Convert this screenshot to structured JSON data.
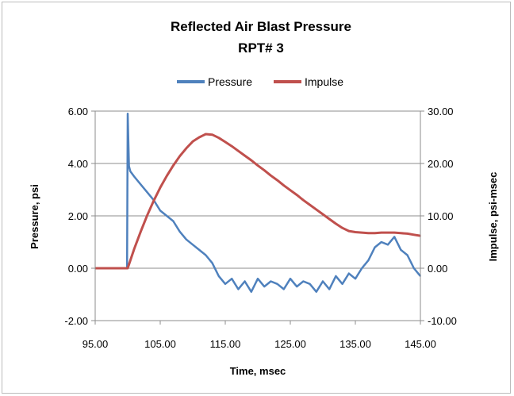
{
  "chart_data": {
    "type": "line",
    "title": "Reflected Air Blast Pressure",
    "subtitle": "RPT# 3",
    "xlabel": "Time, msec",
    "ylabel": "Pressure, psi",
    "y2label": "Impulse, psi-msec",
    "xlim": [
      95,
      145
    ],
    "ylim": [
      -2,
      6
    ],
    "y2lim": [
      -10,
      30
    ],
    "x_ticks": [
      "95.00",
      "105.00",
      "115.00",
      "125.00",
      "135.00",
      "145.00"
    ],
    "y_ticks": [
      "6.00",
      "4.00",
      "2.00",
      "0.00",
      "-2.00"
    ],
    "y2_ticks": [
      "30.00",
      "20.00",
      "10.00",
      "0.00",
      "-10.00"
    ],
    "grid": true,
    "legend_position": "top",
    "series": [
      {
        "name": "Pressure",
        "color": "#4f81bd",
        "axis": "left",
        "x": [
          95.0,
          99.9,
          100.0,
          100.2,
          100.4,
          101,
          102,
          103,
          104,
          105,
          106,
          107,
          108,
          109,
          110,
          111,
          112,
          113,
          114,
          115,
          116,
          117,
          118,
          119,
          120,
          121,
          122,
          123,
          124,
          125,
          126,
          127,
          128,
          129,
          130,
          131,
          132,
          133,
          134,
          135,
          136,
          137,
          138,
          139,
          140,
          141,
          142,
          143,
          144,
          145
        ],
        "y": [
          0.0,
          0.0,
          5.9,
          3.9,
          3.7,
          3.5,
          3.2,
          2.9,
          2.6,
          2.2,
          2.0,
          1.8,
          1.4,
          1.1,
          0.9,
          0.7,
          0.5,
          0.2,
          -0.3,
          -0.6,
          -0.4,
          -0.8,
          -0.5,
          -0.9,
          -0.4,
          -0.7,
          -0.5,
          -0.6,
          -0.8,
          -0.4,
          -0.7,
          -0.5,
          -0.6,
          -0.9,
          -0.5,
          -0.8,
          -0.3,
          -0.6,
          -0.2,
          -0.4,
          0.0,
          0.3,
          0.8,
          1.0,
          0.9,
          1.2,
          0.7,
          0.5,
          0.0,
          -0.3
        ]
      },
      {
        "name": "Impulse",
        "color": "#c0504d",
        "axis": "right",
        "x": [
          95.0,
          100.0,
          101,
          102,
          103,
          104,
          105,
          106,
          107,
          108,
          109,
          110,
          111,
          112,
          113,
          114,
          115,
          116,
          117,
          118,
          119,
          120,
          121,
          122,
          123,
          124,
          125,
          126,
          127,
          128,
          129,
          130,
          131,
          132,
          133,
          134,
          135,
          136,
          137,
          138,
          139,
          140,
          141,
          142,
          143,
          144,
          145
        ],
        "y": [
          0.0,
          0.0,
          3.7,
          7.0,
          10.1,
          12.9,
          15.4,
          17.6,
          19.6,
          21.4,
          22.9,
          24.2,
          25.0,
          25.6,
          25.5,
          24.9,
          24.1,
          23.3,
          22.4,
          21.5,
          20.6,
          19.6,
          18.7,
          17.7,
          16.8,
          15.8,
          14.9,
          14.0,
          13.0,
          12.1,
          11.2,
          10.3,
          9.4,
          8.5,
          7.7,
          7.1,
          6.9,
          6.8,
          6.7,
          6.7,
          6.8,
          6.8,
          6.8,
          6.7,
          6.6,
          6.4,
          6.2
        ]
      }
    ]
  }
}
